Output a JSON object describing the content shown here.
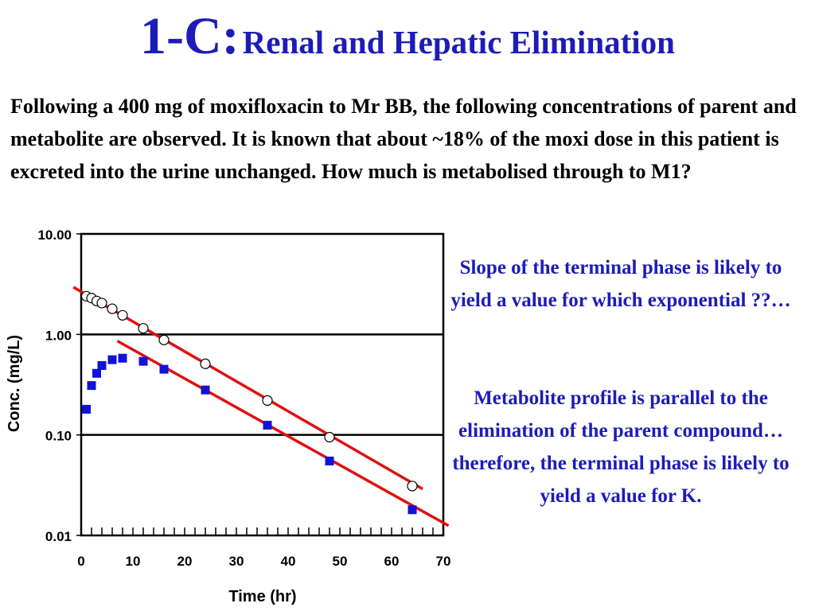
{
  "title": {
    "number": "1-C:",
    "text": "Renal and Hepatic Elimination"
  },
  "question": "Following a 400 mg of moxifloxacin to Mr BB, the following concentrations of parent and metabolite are observed.  It is known that about ~18% of the moxi dose in this patient is excreted into the urine unchanged.  How much is metabolised through to M1?",
  "notes": [
    "Slope of the terminal phase is likely to yield a value for which exponential ??…",
    "Metabolite profile is parallel to the elimination of the parent compound… therefore, the terminal phase is likely to yield a value for K."
  ],
  "accent_color": "#1c1cb8",
  "chart_data": {
    "type": "scatter",
    "xlabel": "Time (hr)",
    "ylabel": "Conc. (mg/L)",
    "xlim": [
      0,
      70
    ],
    "ylim": [
      0.01,
      10
    ],
    "y_scale": "log",
    "x_ticks": [
      "0",
      "10",
      "20",
      "30",
      "40",
      "50",
      "60",
      "70"
    ],
    "y_ticks": [
      "10.00",
      "1.00",
      "0.10",
      "0.01"
    ],
    "y_tick_values": [
      10,
      1,
      0.1,
      0.01
    ],
    "gridlines_y": [
      1,
      0.1
    ],
    "series": [
      {
        "marker": "open-circle",
        "color": "#000000",
        "x": [
          1,
          2,
          3,
          4,
          6,
          8,
          12,
          16,
          24,
          36,
          48,
          64
        ],
        "y": [
          2.4,
          2.3,
          2.15,
          2.05,
          1.8,
          1.55,
          1.15,
          0.88,
          0.51,
          0.22,
          0.095,
          0.031
        ]
      },
      {
        "marker": "filled-square",
        "color": "#1212d6",
        "x": [
          1,
          2,
          3,
          4,
          6,
          8,
          12,
          16,
          24,
          36,
          48,
          64
        ],
        "y": [
          0.18,
          0.31,
          0.41,
          0.49,
          0.56,
          0.58,
          0.54,
          0.45,
          0.28,
          0.125,
          0.055,
          0.018
        ]
      }
    ],
    "fit_lines": [
      {
        "color": "#e01010",
        "x": [
          -1.5,
          66
        ],
        "y": [
          2.95,
          0.029
        ]
      },
      {
        "color": "#e01010",
        "x": [
          7,
          71
        ],
        "y": [
          0.86,
          0.0125
        ]
      }
    ]
  }
}
